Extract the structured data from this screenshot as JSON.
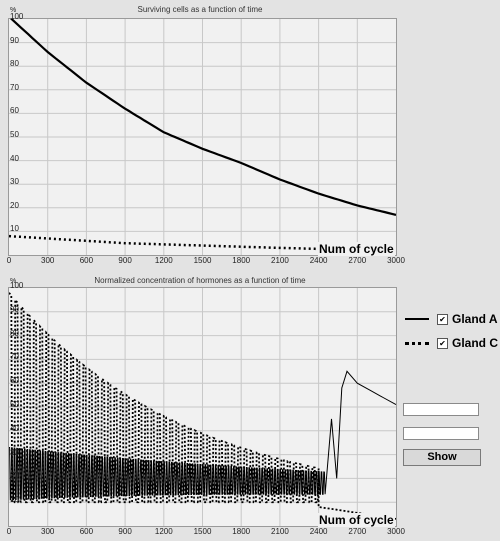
{
  "chart_data": [
    {
      "type": "line",
      "title": "Surviving cells as a function of time",
      "ylabel": "%",
      "xlabel": "Num of cycle",
      "xlim": [
        0,
        3000
      ],
      "ylim": [
        0,
        100
      ],
      "grid": true,
      "x_ticks": [
        "0",
        "300",
        "600",
        "900",
        "1200",
        "1500",
        "1800",
        "2100",
        "2400",
        "2700",
        "3000"
      ],
      "y_ticks": [
        "10",
        "20",
        "30",
        "40",
        "50",
        "60",
        "70",
        "80",
        "90",
        "100"
      ],
      "series": [
        {
          "style": "solid",
          "x": [
            0,
            300,
            600,
            900,
            1200,
            1500,
            1800,
            2100,
            2400,
            2700,
            3000
          ],
          "y": [
            101,
            86,
            73,
            62,
            52,
            45,
            39,
            32,
            26,
            21,
            17
          ]
        },
        {
          "style": "dotted",
          "x": [
            0,
            300,
            600,
            900,
            1200,
            1500,
            1800,
            2100,
            2400,
            2700,
            3000
          ],
          "y": [
            8,
            7,
            6,
            5,
            4.5,
            4,
            3.5,
            3,
            2.6,
            2.2,
            1.8
          ]
        }
      ]
    },
    {
      "type": "line",
      "title": "Normalized concentration of hormones as a function of time",
      "ylabel": "%",
      "xlabel": "Num of cycle",
      "xlim": [
        0,
        3000
      ],
      "ylim": [
        0,
        100
      ],
      "grid": true,
      "x_ticks": [
        "0",
        "300",
        "600",
        "900",
        "1200",
        "1500",
        "1800",
        "2100",
        "2400",
        "2700",
        "3000"
      ],
      "y_ticks": [
        "10",
        "20",
        "30",
        "40",
        "50",
        "60",
        "70",
        "80",
        "90",
        "100"
      ],
      "series": [
        {
          "name": "Gland A",
          "style": "solid",
          "description": "dense oscillation decaying until ~2450, then spike to ~65 near 2620 and decline to ~51 at 3000"
        },
        {
          "name": "Gland C",
          "style": "dotted",
          "description": "dense oscillation reaching ~95 near start, envelope decaying; points near 8-3 for cycles 2400-3000"
        }
      ]
    }
  ],
  "legend": {
    "items": [
      {
        "label": "Gland A",
        "checked": true
      },
      {
        "label": "Gland C",
        "checked": true
      }
    ],
    "check_glyph": "✔"
  },
  "controls": {
    "field1_value": "",
    "field2_value": "",
    "show_label": "Show"
  }
}
